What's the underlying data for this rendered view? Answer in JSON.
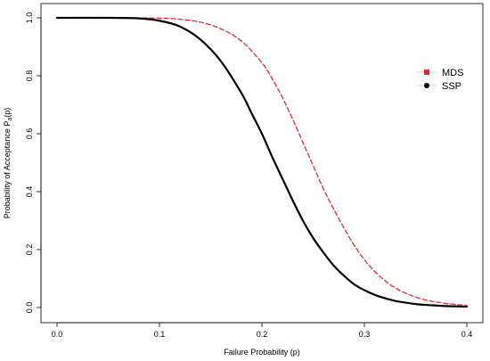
{
  "chart_data": {
    "type": "line",
    "title": "",
    "xlabel": "Failure Probability (p)",
    "ylabel_prefix": "Probability of Acceptance P",
    "ylabel_sub": "a",
    "ylabel_suffix": "(p)",
    "xlim": [
      0.0,
      0.4
    ],
    "ylim": [
      0.0,
      1.0
    ],
    "x_ticks": [
      "0.0",
      "0.1",
      "0.2",
      "0.3",
      "0.4"
    ],
    "y_ticks": [
      "0.0",
      "0.2",
      "0.4",
      "0.6",
      "0.8",
      "1.0"
    ],
    "grid": false,
    "legend_position": "right",
    "series": [
      {
        "name": "MDS",
        "color": "#e8262b",
        "style": "dashed",
        "marker": "square",
        "x": [
          0.0,
          0.05,
          0.1,
          0.12,
          0.14,
          0.16,
          0.18,
          0.2,
          0.21,
          0.22,
          0.23,
          0.24,
          0.25,
          0.26,
          0.27,
          0.28,
          0.29,
          0.3,
          0.31,
          0.32,
          0.33,
          0.34,
          0.35,
          0.36,
          0.37,
          0.38,
          0.39,
          0.4
        ],
        "y": [
          1.0,
          1.0,
          0.999,
          0.995,
          0.985,
          0.962,
          0.92,
          0.845,
          0.79,
          0.725,
          0.65,
          0.57,
          0.49,
          0.41,
          0.34,
          0.275,
          0.215,
          0.165,
          0.125,
          0.093,
          0.068,
          0.05,
          0.036,
          0.026,
          0.019,
          0.014,
          0.01,
          0.007
        ]
      },
      {
        "name": "SSP",
        "color": "#000000",
        "style": "solid",
        "marker": "circle",
        "x": [
          0.0,
          0.05,
          0.08,
          0.1,
          0.12,
          0.14,
          0.16,
          0.18,
          0.19,
          0.2,
          0.21,
          0.22,
          0.23,
          0.24,
          0.25,
          0.26,
          0.27,
          0.28,
          0.29,
          0.3,
          0.31,
          0.32,
          0.33,
          0.34,
          0.35,
          0.36,
          0.37,
          0.38,
          0.39,
          0.4
        ],
        "y": [
          1.0,
          1.0,
          0.998,
          0.99,
          0.97,
          0.925,
          0.85,
          0.74,
          0.67,
          0.6,
          0.52,
          0.445,
          0.37,
          0.3,
          0.24,
          0.19,
          0.145,
          0.11,
          0.08,
          0.06,
          0.044,
          0.032,
          0.023,
          0.017,
          0.012,
          0.009,
          0.007,
          0.005,
          0.004,
          0.003
        ]
      }
    ]
  }
}
